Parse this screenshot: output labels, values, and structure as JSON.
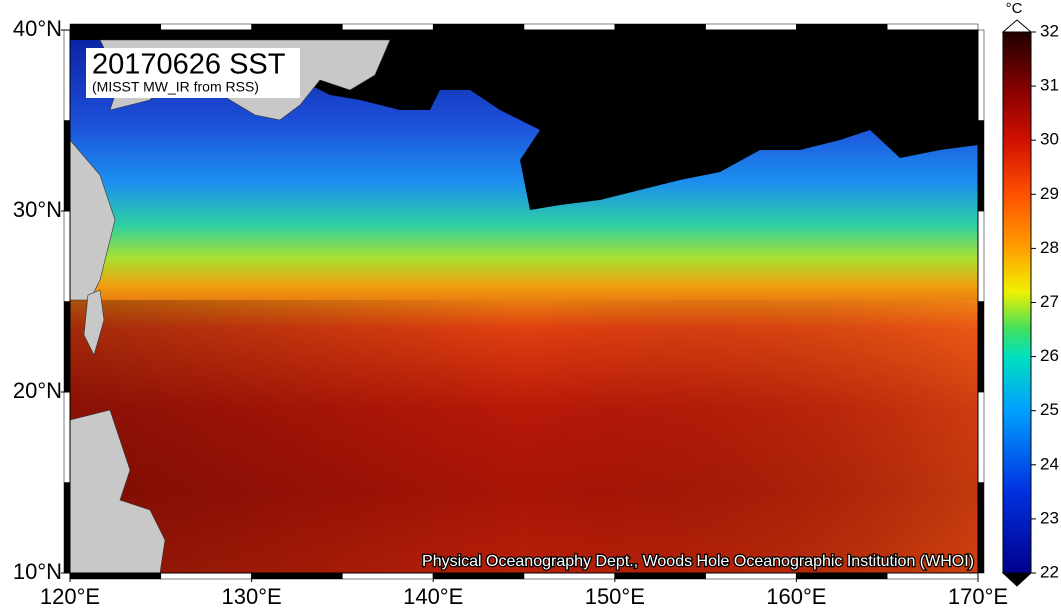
{
  "map": {
    "title": "20170626 SST",
    "subtitle": "(MISST MW_IR from RSS)",
    "credit": "Physical Oceanography Dept., Woods Hole Oceanographic Institution (WHOI)",
    "xlim": [
      120,
      170
    ],
    "ylim": [
      10,
      40
    ],
    "xticks": [
      {
        "value": 120,
        "label": "120°E"
      },
      {
        "value": 130,
        "label": "130°E"
      },
      {
        "value": 140,
        "label": "140°E"
      },
      {
        "value": 150,
        "label": "150°E"
      },
      {
        "value": 160,
        "label": "160°E"
      },
      {
        "value": 170,
        "label": "170°E"
      }
    ],
    "yticks": [
      {
        "value": 10,
        "label": "10°N"
      },
      {
        "value": 20,
        "label": "20°N"
      },
      {
        "value": 30,
        "label": "30°N"
      },
      {
        "value": 40,
        "label": "40°N"
      }
    ]
  },
  "colorbar": {
    "unit": "°C",
    "lim": [
      22,
      32
    ],
    "ticks": [
      22,
      23,
      24,
      25,
      26,
      27,
      28,
      29,
      30,
      31,
      32
    ]
  }
}
